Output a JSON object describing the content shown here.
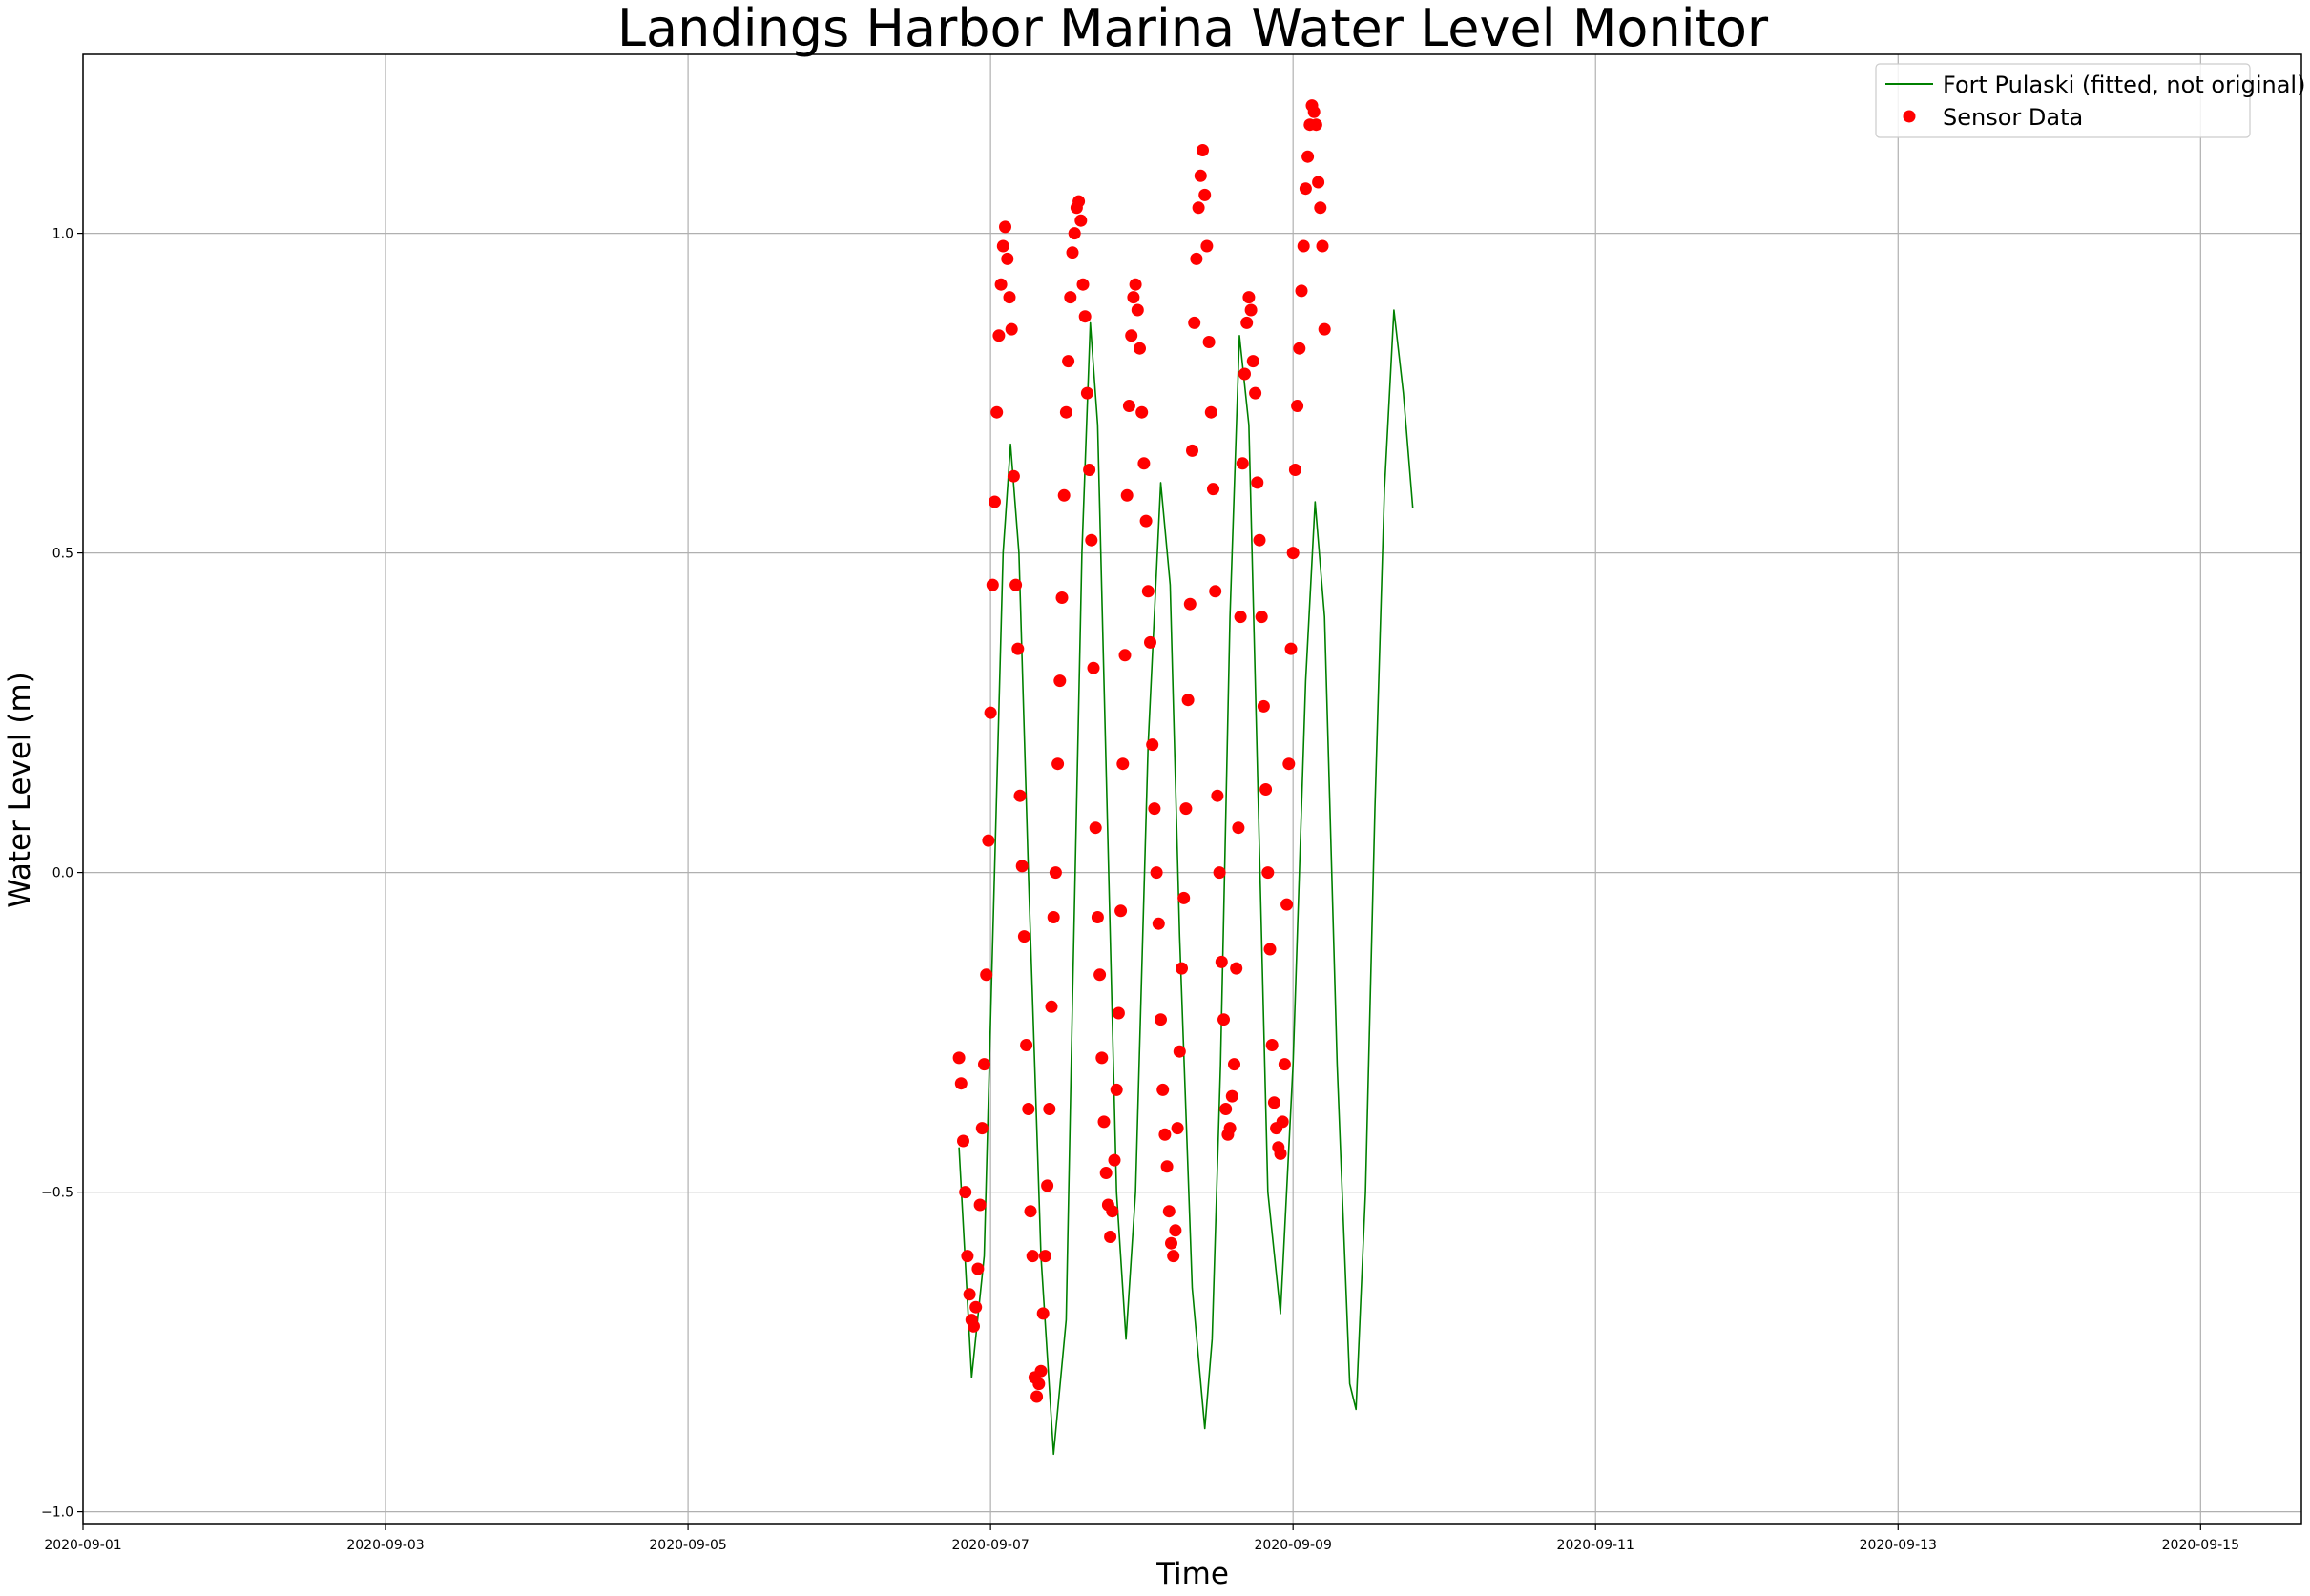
{
  "chart_data": {
    "type": "scatter",
    "title": "Landings Harbor Marina Water Level Monitor",
    "xlabel": "Time",
    "ylabel": "Water Level (m)",
    "xlim": [
      "2020-09-01T00:00",
      "2020-09-15T16:00"
    ],
    "ylim": [
      -1.02,
      1.28
    ],
    "x_ticks": [
      "2020-09-01",
      "2020-09-03",
      "2020-09-05",
      "2020-09-07",
      "2020-09-09",
      "2020-09-11",
      "2020-09-13",
      "2020-09-15"
    ],
    "y_ticks": [
      -1.0,
      -0.5,
      0.0,
      0.5,
      1.0
    ],
    "y_tick_labels": [
      "−1.0",
      "−0.5",
      "0.0",
      "0.5",
      "1.0"
    ],
    "grid": true,
    "legend_position": "top-right",
    "series": [
      {
        "name": "Fort Pulaski (fitted, not original)",
        "kind": "line",
        "color": "#008000",
        "points": [
          [
            "2020-09-06T19:00",
            -0.43
          ],
          [
            "2020-09-06T21:00",
            -0.79
          ],
          [
            "2020-09-06T23:00",
            -0.6
          ],
          [
            "2020-09-07T00:30",
            -0.05
          ],
          [
            "2020-09-07T02:00",
            0.5
          ],
          [
            "2020-09-07T03:10",
            0.67
          ],
          [
            "2020-09-07T04:30",
            0.5
          ],
          [
            "2020-09-07T06:00",
            0.0
          ],
          [
            "2020-09-07T08:00",
            -0.6
          ],
          [
            "2020-09-07T10:00",
            -0.91
          ],
          [
            "2020-09-07T12:00",
            -0.7
          ],
          [
            "2020-09-07T13:00",
            -0.2
          ],
          [
            "2020-09-07T14:30",
            0.5
          ],
          [
            "2020-09-07T15:50",
            0.86
          ],
          [
            "2020-09-07T17:00",
            0.7
          ],
          [
            "2020-09-07T18:30",
            0.1
          ],
          [
            "2020-09-07T20:00",
            -0.5
          ],
          [
            "2020-09-07T21:30",
            -0.73
          ],
          [
            "2020-09-07T23:00",
            -0.5
          ],
          [
            "2020-09-08T01:00",
            0.2
          ],
          [
            "2020-09-08T03:00",
            0.61
          ],
          [
            "2020-09-08T04:30",
            0.45
          ],
          [
            "2020-09-08T06:00",
            -0.1
          ],
          [
            "2020-09-08T08:00",
            -0.65
          ],
          [
            "2020-09-08T10:00",
            -0.87
          ],
          [
            "2020-09-08T11:10",
            -0.73
          ],
          [
            "2020-09-08T12:30",
            -0.3
          ],
          [
            "2020-09-08T14:00",
            0.4
          ],
          [
            "2020-09-08T15:30",
            0.84
          ],
          [
            "2020-09-08T17:00",
            0.7
          ],
          [
            "2020-09-08T18:30",
            0.1
          ],
          [
            "2020-09-08T20:00",
            -0.5
          ],
          [
            "2020-09-08T22:00",
            -0.69
          ],
          [
            "2020-09-09T00:00",
            -0.3
          ],
          [
            "2020-09-09T02:00",
            0.3
          ],
          [
            "2020-09-09T03:30",
            0.58
          ],
          [
            "2020-09-09T05:00",
            0.4
          ],
          [
            "2020-09-09T07:00",
            -0.3
          ],
          [
            "2020-09-09T09:00",
            -0.8
          ],
          [
            "2020-09-09T10:00",
            -0.84
          ],
          [
            "2020-09-09T11:30",
            -0.5
          ],
          [
            "2020-09-09T13:00",
            0.1
          ],
          [
            "2020-09-09T14:30",
            0.6
          ],
          [
            "2020-09-09T16:00",
            0.88
          ],
          [
            "2020-09-09T17:30",
            0.75
          ],
          [
            "2020-09-09T19:00",
            0.57
          ]
        ]
      },
      {
        "name": "Sensor Data",
        "kind": "scatter",
        "color": "#ff0000",
        "points": [
          [
            "2020-09-06T19:00",
            -0.29
          ],
          [
            "2020-09-06T19:20",
            -0.33
          ],
          [
            "2020-09-06T19:40",
            -0.42
          ],
          [
            "2020-09-06T20:00",
            -0.5
          ],
          [
            "2020-09-06T20:20",
            -0.6
          ],
          [
            "2020-09-06T20:40",
            -0.66
          ],
          [
            "2020-09-06T21:00",
            -0.7
          ],
          [
            "2020-09-06T21:20",
            -0.71
          ],
          [
            "2020-09-06T21:40",
            -0.68
          ],
          [
            "2020-09-06T22:00",
            -0.62
          ],
          [
            "2020-09-06T22:20",
            -0.52
          ],
          [
            "2020-09-06T22:40",
            -0.4
          ],
          [
            "2020-09-06T23:00",
            -0.3
          ],
          [
            "2020-09-06T23:20",
            -0.16
          ],
          [
            "2020-09-06T23:40",
            0.05
          ],
          [
            "2020-09-07T00:00",
            0.25
          ],
          [
            "2020-09-07T00:20",
            0.45
          ],
          [
            "2020-09-07T00:40",
            0.58
          ],
          [
            "2020-09-07T01:00",
            0.72
          ],
          [
            "2020-09-07T01:20",
            0.84
          ],
          [
            "2020-09-07T01:40",
            0.92
          ],
          [
            "2020-09-07T02:00",
            0.98
          ],
          [
            "2020-09-07T02:20",
            1.01
          ],
          [
            "2020-09-07T02:40",
            0.96
          ],
          [
            "2020-09-07T03:00",
            0.9
          ],
          [
            "2020-09-07T03:20",
            0.85
          ],
          [
            "2020-09-07T03:40",
            0.62
          ],
          [
            "2020-09-07T04:00",
            0.45
          ],
          [
            "2020-09-07T04:20",
            0.35
          ],
          [
            "2020-09-07T04:40",
            0.12
          ],
          [
            "2020-09-07T05:00",
            0.01
          ],
          [
            "2020-09-07T05:20",
            -0.1
          ],
          [
            "2020-09-07T05:40",
            -0.27
          ],
          [
            "2020-09-07T06:00",
            -0.37
          ],
          [
            "2020-09-07T06:20",
            -0.53
          ],
          [
            "2020-09-07T06:40",
            -0.6
          ],
          [
            "2020-09-07T07:00",
            -0.79
          ],
          [
            "2020-09-07T07:20",
            -0.82
          ],
          [
            "2020-09-07T07:40",
            -0.8
          ],
          [
            "2020-09-07T08:00",
            -0.78
          ],
          [
            "2020-09-07T08:20",
            -0.69
          ],
          [
            "2020-09-07T08:40",
            -0.6
          ],
          [
            "2020-09-07T09:00",
            -0.49
          ],
          [
            "2020-09-07T09:20",
            -0.37
          ],
          [
            "2020-09-07T09:40",
            -0.21
          ],
          [
            "2020-09-07T10:00",
            -0.07
          ],
          [
            "2020-09-07T10:20",
            0.0
          ],
          [
            "2020-09-07T10:40",
            0.17
          ],
          [
            "2020-09-07T11:00",
            0.3
          ],
          [
            "2020-09-07T11:20",
            0.43
          ],
          [
            "2020-09-07T11:40",
            0.59
          ],
          [
            "2020-09-07T12:00",
            0.72
          ],
          [
            "2020-09-07T12:20",
            0.8
          ],
          [
            "2020-09-07T12:40",
            0.9
          ],
          [
            "2020-09-07T13:00",
            0.97
          ],
          [
            "2020-09-07T13:20",
            1.0
          ],
          [
            "2020-09-07T13:40",
            1.04
          ],
          [
            "2020-09-07T14:00",
            1.05
          ],
          [
            "2020-09-07T14:20",
            1.02
          ],
          [
            "2020-09-07T14:40",
            0.92
          ],
          [
            "2020-09-07T15:00",
            0.87
          ],
          [
            "2020-09-07T15:20",
            0.75
          ],
          [
            "2020-09-07T15:40",
            0.63
          ],
          [
            "2020-09-07T16:00",
            0.52
          ],
          [
            "2020-09-07T16:20",
            0.32
          ],
          [
            "2020-09-07T16:40",
            0.07
          ],
          [
            "2020-09-07T17:00",
            -0.07
          ],
          [
            "2020-09-07T17:20",
            -0.16
          ],
          [
            "2020-09-07T17:40",
            -0.29
          ],
          [
            "2020-09-07T18:00",
            -0.39
          ],
          [
            "2020-09-07T18:20",
            -0.47
          ],
          [
            "2020-09-07T18:40",
            -0.52
          ],
          [
            "2020-09-07T19:00",
            -0.57
          ],
          [
            "2020-09-07T19:20",
            -0.53
          ],
          [
            "2020-09-07T19:40",
            -0.45
          ],
          [
            "2020-09-07T20:00",
            -0.34
          ],
          [
            "2020-09-07T20:20",
            -0.22
          ],
          [
            "2020-09-07T20:40",
            -0.06
          ],
          [
            "2020-09-07T21:00",
            0.17
          ],
          [
            "2020-09-07T21:20",
            0.34
          ],
          [
            "2020-09-07T21:40",
            0.59
          ],
          [
            "2020-09-07T22:00",
            0.73
          ],
          [
            "2020-09-07T22:20",
            0.84
          ],
          [
            "2020-09-07T22:40",
            0.9
          ],
          [
            "2020-09-07T23:00",
            0.92
          ],
          [
            "2020-09-07T23:20",
            0.88
          ],
          [
            "2020-09-07T23:40",
            0.82
          ],
          [
            "2020-09-08T00:00",
            0.72
          ],
          [
            "2020-09-08T00:20",
            0.64
          ],
          [
            "2020-09-08T00:40",
            0.55
          ],
          [
            "2020-09-08T01:00",
            0.44
          ],
          [
            "2020-09-08T01:20",
            0.36
          ],
          [
            "2020-09-08T01:40",
            0.2
          ],
          [
            "2020-09-08T02:00",
            0.1
          ],
          [
            "2020-09-08T02:20",
            0.0
          ],
          [
            "2020-09-08T02:40",
            -0.08
          ],
          [
            "2020-09-08T03:00",
            -0.23
          ],
          [
            "2020-09-08T03:20",
            -0.34
          ],
          [
            "2020-09-08T03:40",
            -0.41
          ],
          [
            "2020-09-08T04:00",
            -0.46
          ],
          [
            "2020-09-08T04:20",
            -0.53
          ],
          [
            "2020-09-08T04:40",
            -0.58
          ],
          [
            "2020-09-08T05:00",
            -0.6
          ],
          [
            "2020-09-08T05:20",
            -0.56
          ],
          [
            "2020-09-08T05:40",
            -0.4
          ],
          [
            "2020-09-08T06:00",
            -0.28
          ],
          [
            "2020-09-08T06:20",
            -0.15
          ],
          [
            "2020-09-08T06:40",
            -0.04
          ],
          [
            "2020-09-08T07:00",
            0.1
          ],
          [
            "2020-09-08T07:20",
            0.27
          ],
          [
            "2020-09-08T07:40",
            0.42
          ],
          [
            "2020-09-08T08:00",
            0.66
          ],
          [
            "2020-09-08T08:20",
            0.86
          ],
          [
            "2020-09-08T08:40",
            0.96
          ],
          [
            "2020-09-08T09:00",
            1.04
          ],
          [
            "2020-09-08T09:20",
            1.09
          ],
          [
            "2020-09-08T09:40",
            1.13
          ],
          [
            "2020-09-08T10:00",
            1.06
          ],
          [
            "2020-09-08T10:20",
            0.98
          ],
          [
            "2020-09-08T10:40",
            0.83
          ],
          [
            "2020-09-08T11:00",
            0.72
          ],
          [
            "2020-09-08T11:20",
            0.6
          ],
          [
            "2020-09-08T11:40",
            0.44
          ],
          [
            "2020-09-08T12:00",
            0.12
          ],
          [
            "2020-09-08T12:20",
            0.0
          ],
          [
            "2020-09-08T12:40",
            -0.14
          ],
          [
            "2020-09-08T13:00",
            -0.23
          ],
          [
            "2020-09-08T13:20",
            -0.37
          ],
          [
            "2020-09-08T13:40",
            -0.41
          ],
          [
            "2020-09-08T14:00",
            -0.4
          ],
          [
            "2020-09-08T14:20",
            -0.35
          ],
          [
            "2020-09-08T14:40",
            -0.3
          ],
          [
            "2020-09-08T15:00",
            -0.15
          ],
          [
            "2020-09-08T15:20",
            0.07
          ],
          [
            "2020-09-08T15:40",
            0.4
          ],
          [
            "2020-09-08T16:00",
            0.64
          ],
          [
            "2020-09-08T16:20",
            0.78
          ],
          [
            "2020-09-08T16:40",
            0.86
          ],
          [
            "2020-09-08T17:00",
            0.9
          ],
          [
            "2020-09-08T17:20",
            0.88
          ],
          [
            "2020-09-08T17:40",
            0.8
          ],
          [
            "2020-09-08T18:00",
            0.75
          ],
          [
            "2020-09-08T18:20",
            0.61
          ],
          [
            "2020-09-08T18:40",
            0.52
          ],
          [
            "2020-09-08T19:00",
            0.4
          ],
          [
            "2020-09-08T19:20",
            0.26
          ],
          [
            "2020-09-08T19:40",
            0.13
          ],
          [
            "2020-09-08T20:00",
            0.0
          ],
          [
            "2020-09-08T20:20",
            -0.12
          ],
          [
            "2020-09-08T20:40",
            -0.27
          ],
          [
            "2020-09-08T21:00",
            -0.36
          ],
          [
            "2020-09-08T21:20",
            -0.4
          ],
          [
            "2020-09-08T21:40",
            -0.43
          ],
          [
            "2020-09-08T22:00",
            -0.44
          ],
          [
            "2020-09-08T22:20",
            -0.39
          ],
          [
            "2020-09-08T22:40",
            -0.3
          ],
          [
            "2020-09-08T23:00",
            -0.05
          ],
          [
            "2020-09-08T23:20",
            0.17
          ],
          [
            "2020-09-08T23:40",
            0.35
          ],
          [
            "2020-09-09T00:00",
            0.5
          ],
          [
            "2020-09-09T00:20",
            0.63
          ],
          [
            "2020-09-09T00:40",
            0.73
          ],
          [
            "2020-09-09T01:00",
            0.82
          ],
          [
            "2020-09-09T01:20",
            0.91
          ],
          [
            "2020-09-09T01:40",
            0.98
          ],
          [
            "2020-09-09T02:00",
            1.07
          ],
          [
            "2020-09-09T02:20",
            1.12
          ],
          [
            "2020-09-09T02:40",
            1.17
          ],
          [
            "2020-09-09T03:00",
            1.2
          ],
          [
            "2020-09-09T03:20",
            1.19
          ],
          [
            "2020-09-09T03:40",
            1.17
          ],
          [
            "2020-09-09T04:00",
            1.08
          ],
          [
            "2020-09-09T04:20",
            1.04
          ],
          [
            "2020-09-09T04:40",
            0.98
          ],
          [
            "2020-09-09T05:00",
            0.85
          ]
        ]
      }
    ]
  }
}
